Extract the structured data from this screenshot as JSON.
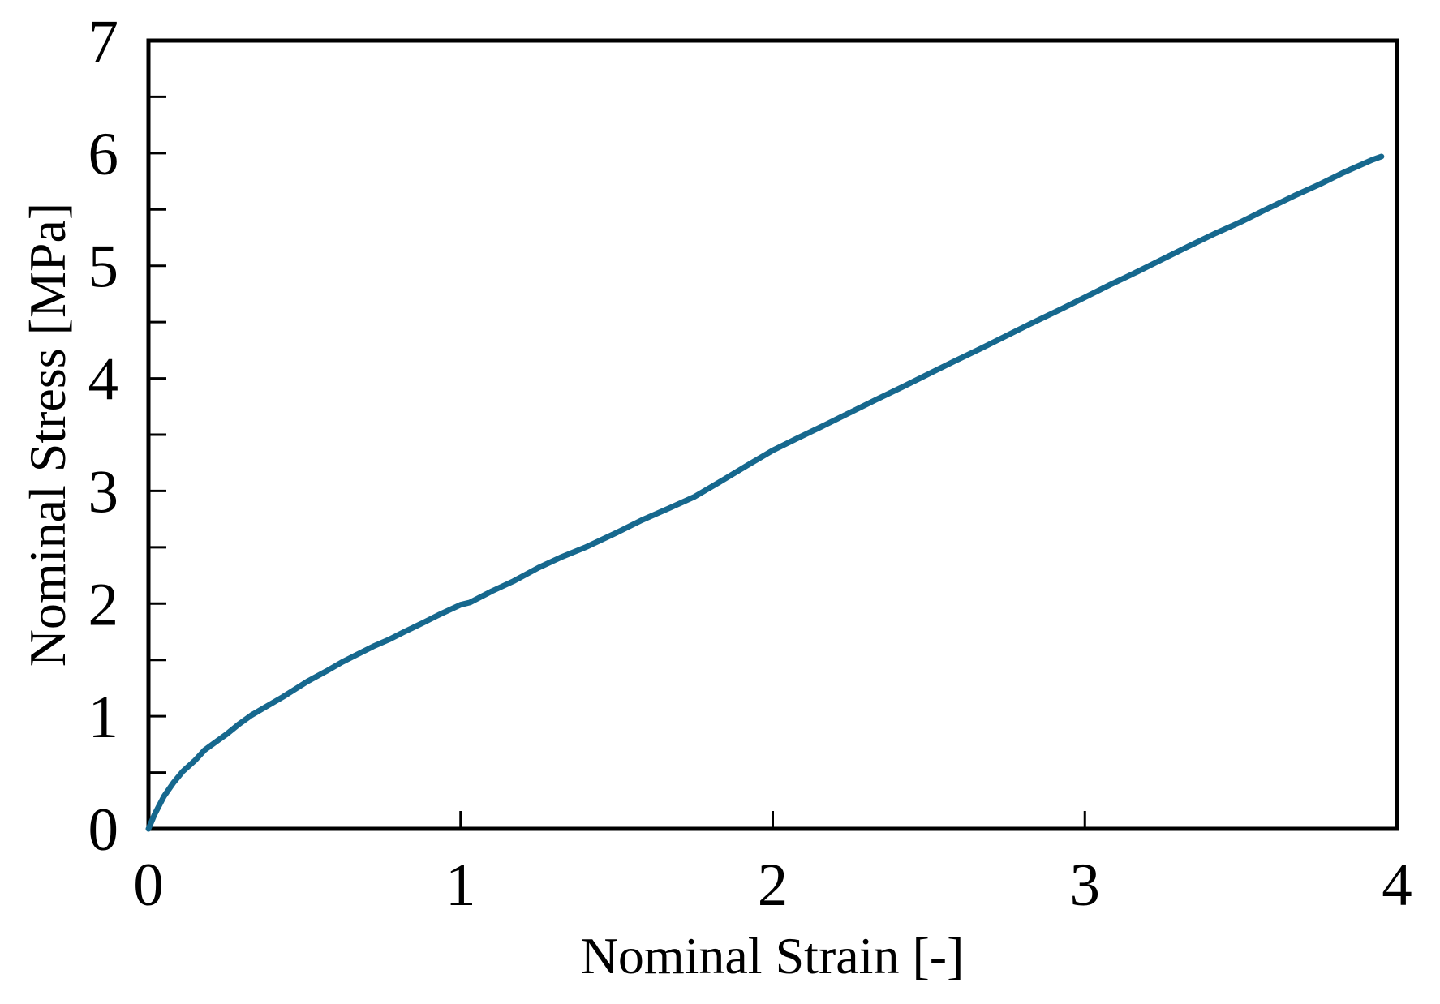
{
  "chart_data": {
    "type": "line",
    "title": "",
    "xlabel": "Nominal Strain [-]",
    "ylabel": "Nominal Stress [MPa]",
    "xlim": [
      0,
      4
    ],
    "ylim": [
      0,
      7
    ],
    "x_ticks": [
      0,
      1,
      2,
      3,
      4
    ],
    "y_ticks": [
      0,
      1,
      2,
      3,
      4,
      5,
      6,
      7
    ],
    "y_minor_tick_step": 0.5,
    "grid": false,
    "legend_position": "none",
    "line_color": "#16688e",
    "line_width": 7,
    "axis_color": "#000000",
    "background_color": "#ffffff",
    "series": [
      {
        "points": [
          [
            0.0,
            0.0
          ],
          [
            0.02,
            0.13
          ],
          [
            0.05,
            0.29
          ],
          [
            0.08,
            0.41
          ],
          [
            0.11,
            0.51
          ],
          [
            0.15,
            0.61
          ],
          [
            0.18,
            0.7
          ],
          [
            0.22,
            0.78
          ],
          [
            0.25,
            0.84
          ],
          [
            0.29,
            0.93
          ],
          [
            0.33,
            1.01
          ],
          [
            0.38,
            1.09
          ],
          [
            0.43,
            1.17
          ],
          [
            0.47,
            1.24
          ],
          [
            0.51,
            1.31
          ],
          [
            0.57,
            1.4
          ],
          [
            0.62,
            1.48
          ],
          [
            0.67,
            1.55
          ],
          [
            0.72,
            1.62
          ],
          [
            0.77,
            1.68
          ],
          [
            0.82,
            1.75
          ],
          [
            0.88,
            1.83
          ],
          [
            0.93,
            1.9
          ],
          [
            1.0,
            1.99
          ],
          [
            1.03,
            2.01
          ],
          [
            1.1,
            2.11
          ],
          [
            1.17,
            2.2
          ],
          [
            1.25,
            2.32
          ],
          [
            1.32,
            2.41
          ],
          [
            1.4,
            2.5
          ],
          [
            1.5,
            2.63
          ],
          [
            1.58,
            2.74
          ],
          [
            1.67,
            2.85
          ],
          [
            1.75,
            2.95
          ],
          [
            1.83,
            3.08
          ],
          [
            1.92,
            3.23
          ],
          [
            2.0,
            3.36
          ],
          [
            2.08,
            3.47
          ],
          [
            2.17,
            3.59
          ],
          [
            2.25,
            3.7
          ],
          [
            2.33,
            3.81
          ],
          [
            2.42,
            3.93
          ],
          [
            2.5,
            4.04
          ],
          [
            2.58,
            4.15
          ],
          [
            2.67,
            4.27
          ],
          [
            2.75,
            4.38
          ],
          [
            2.83,
            4.49
          ],
          [
            2.92,
            4.61
          ],
          [
            3.0,
            4.72
          ],
          [
            3.08,
            4.83
          ],
          [
            3.17,
            4.95
          ],
          [
            3.25,
            5.06
          ],
          [
            3.33,
            5.17
          ],
          [
            3.42,
            5.29
          ],
          [
            3.5,
            5.39
          ],
          [
            3.58,
            5.5
          ],
          [
            3.67,
            5.62
          ],
          [
            3.75,
            5.72
          ],
          [
            3.83,
            5.83
          ],
          [
            3.92,
            5.94
          ],
          [
            3.95,
            5.97
          ]
        ]
      }
    ]
  }
}
